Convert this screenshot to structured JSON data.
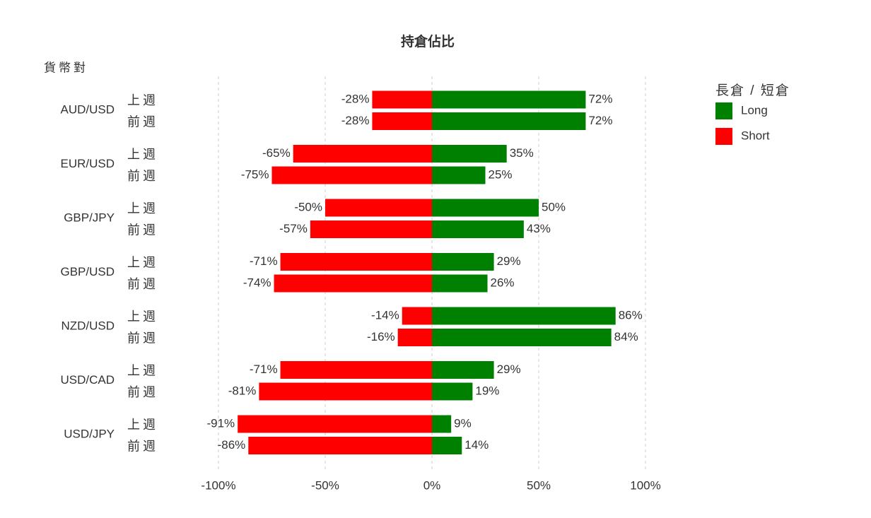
{
  "chart_data": {
    "type": "bar",
    "orientation": "horizontal",
    "title": "持倉佔比",
    "y_label": "貨幣對",
    "groups": [
      "AUD/USD",
      "EUR/USD",
      "GBP/JPY",
      "GBP/USD",
      "NZD/USD",
      "USD/CAD",
      "USD/JPY"
    ],
    "categories": [
      "上週",
      "前週",
      "上週",
      "前週",
      "上週",
      "前週",
      "上週",
      "前週",
      "上週",
      "前週",
      "上週",
      "前週",
      "上週",
      "前週"
    ],
    "legend_title": "長倉 / 短倉",
    "legend": "top-right",
    "series": [
      {
        "name": "Long",
        "color": "#008000",
        "values": [
          72,
          72,
          35,
          25,
          50,
          43,
          29,
          26,
          86,
          84,
          29,
          19,
          9,
          14
        ],
        "value_labels": [
          "72%",
          "72%",
          "35%",
          "25%",
          "50%",
          "43%",
          "29%",
          "26%",
          "86%",
          "84%",
          "29%",
          "19%",
          "9%",
          "14%"
        ]
      },
      {
        "name": "Short",
        "color": "#ff0000",
        "values": [
          -28,
          -28,
          -65,
          -75,
          -50,
          -57,
          -71,
          -74,
          -14,
          -16,
          -71,
          -81,
          -91,
          -86
        ],
        "value_labels": [
          "-28%",
          "-28%",
          "-65%",
          "-75%",
          "-50%",
          "-57%",
          "-71%",
          "-74%",
          "-14%",
          "-16%",
          "-71%",
          "-81%",
          "-91%",
          "-86%"
        ]
      }
    ],
    "xlim": [
      -100,
      100
    ],
    "xticks": [
      {
        "value": -100,
        "label": "-100%"
      },
      {
        "value": -50,
        "label": "-50%"
      },
      {
        "value": 0,
        "label": "0%"
      },
      {
        "value": 50,
        "label": "50%"
      },
      {
        "value": 100,
        "label": "100%"
      }
    ],
    "grid": true
  }
}
